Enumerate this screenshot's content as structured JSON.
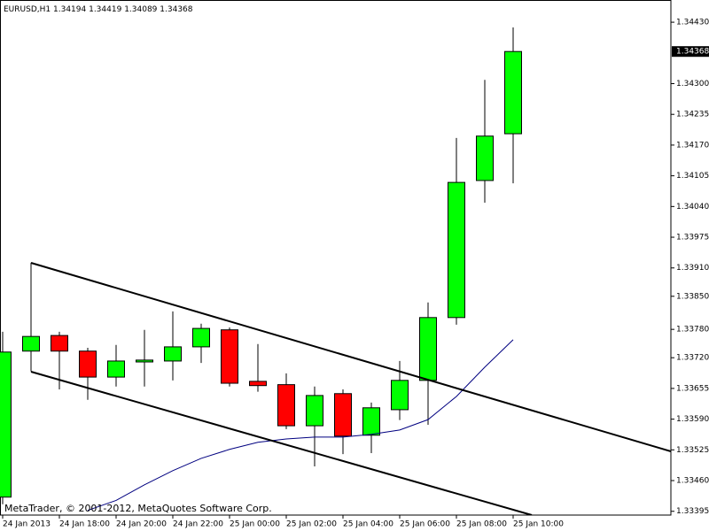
{
  "chart_data": {
    "type": "candlestick",
    "title": "EURUSD,H1",
    "watermark": "MetaTrader, © 2001-2012, MetaQuotes Software Corp.",
    "categories": [
      "24 Jan 2013",
      null,
      "24 Jan 18:00",
      null,
      "24 Jan 20:00",
      null,
      "24 Jan 22:00",
      null,
      "25 Jan 00:00",
      null,
      "25 Jan 02:00",
      null,
      "25 Jan 04:00",
      null,
      "25 Jan 06:00",
      null,
      "25 Jan 08:00",
      null,
      "25 Jan 10:00"
    ],
    "open": [
      1.33425,
      1.33734,
      1.33767,
      1.33734,
      1.33679,
      1.33711,
      1.33713,
      1.33743,
      1.33779,
      1.3367,
      1.33663,
      1.33576,
      1.33644,
      1.33556,
      1.3361,
      1.33672,
      1.33805,
      1.34095,
      1.34194
    ],
    "high": [
      1.33775,
      1.33921,
      1.33775,
      1.33741,
      1.33747,
      1.33779,
      1.33818,
      1.33792,
      1.33784,
      1.33749,
      1.33687,
      1.33659,
      1.33653,
      1.33625,
      1.33713,
      1.33837,
      1.34185,
      1.34308,
      1.34419
    ],
    "low": [
      1.3341,
      1.33691,
      1.33653,
      1.33631,
      1.33659,
      1.33659,
      1.33672,
      1.33709,
      1.33659,
      1.33648,
      1.33569,
      1.3349,
      1.33516,
      1.33518,
      1.33588,
      1.33578,
      1.3379,
      1.34048,
      1.34089
    ],
    "close": [
      1.33732,
      1.33765,
      1.33734,
      1.33679,
      1.33713,
      1.33715,
      1.33743,
      1.33782,
      1.33666,
      1.33661,
      1.33576,
      1.3364,
      1.33554,
      1.33614,
      1.33672,
      1.33805,
      1.34091,
      1.34189,
      1.34368
    ],
    "up_color": "#00ff00",
    "down_color": "#ff0000",
    "ma": {
      "color": "#000080",
      "values": [
        null,
        null,
        null,
        1.33397,
        1.33418,
        1.33451,
        1.33481,
        1.33507,
        1.33526,
        1.33541,
        1.33548,
        1.33552,
        1.33552,
        1.33558,
        1.33567,
        1.33589,
        1.33638,
        1.337,
        1.33758
      ]
    },
    "ylim": [
      1.33387,
      1.34477
    ],
    "yticks": [
      {
        "value": 1.3443,
        "label": "1.34430"
      },
      {
        "value": 1.343,
        "label": "1.34300"
      },
      1.34235,
      {
        "value": 1.3417,
        "label": "1.34170"
      },
      1.34105,
      {
        "value": 1.3404,
        "label": "1.34040"
      },
      1.33975,
      {
        "value": 1.3391,
        "label": "1.33910"
      },
      {
        "value": 1.3385,
        "label": "1.33850"
      },
      {
        "value": 1.3378,
        "label": "1.33780"
      },
      {
        "value": 1.3372,
        "label": "1.33720"
      },
      1.33655,
      {
        "value": 1.3359,
        "label": "1.33590"
      },
      1.33525,
      {
        "value": 1.3346,
        "label": "1.33460"
      },
      1.33395
    ]
  }
}
